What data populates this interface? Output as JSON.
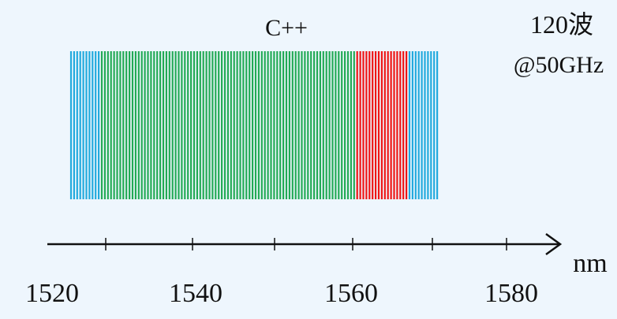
{
  "title": "C++",
  "annotation": {
    "line1": "120波",
    "line2": "@50GHz"
  },
  "axis": {
    "unit": "nm",
    "labels": [
      "1520",
      "1540",
      "1560",
      "1580"
    ]
  }
}
